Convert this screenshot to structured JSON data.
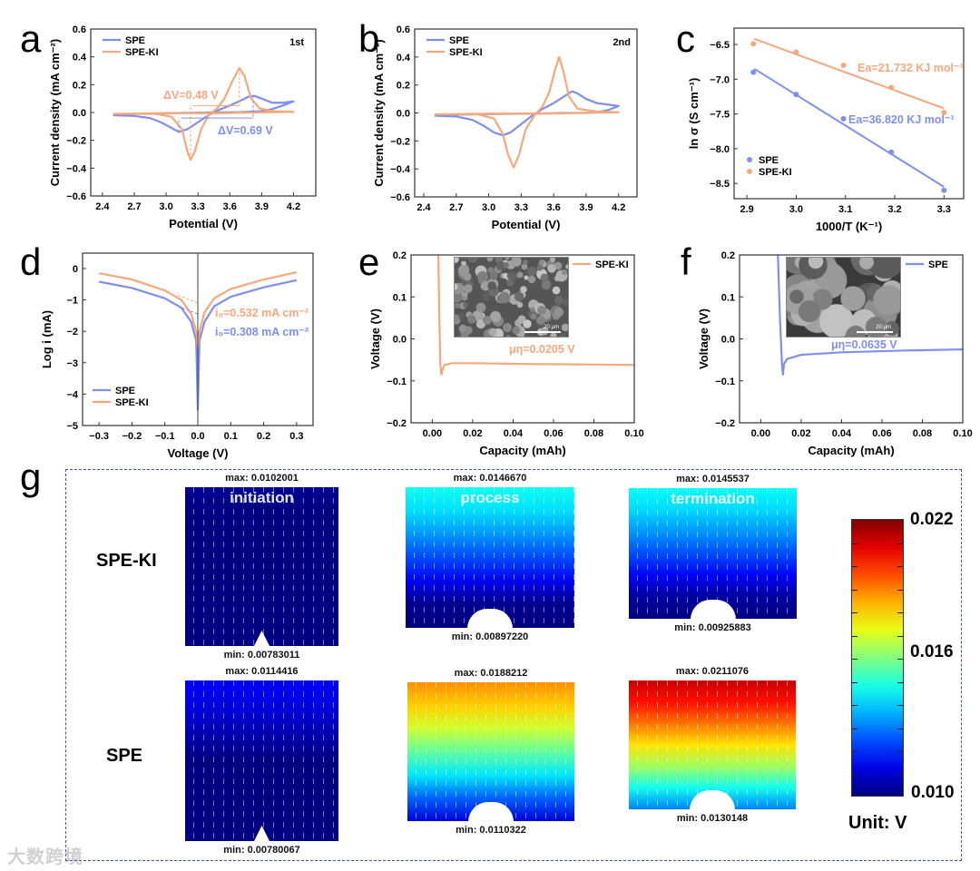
{
  "panel_letters": [
    "a",
    "b",
    "c",
    "d",
    "e",
    "f",
    "g"
  ],
  "colors": {
    "SPE": "#7f8ff0",
    "SPE-KI": "#f5a87c"
  },
  "chart_data": [
    {
      "id": "a",
      "type": "line",
      "xlabel": "Potential (V)",
      "ylabel": "Current density (mA cm⁻²)",
      "xlim": [
        2.29,
        4.41
      ],
      "ylim": [
        -0.6,
        0.6
      ],
      "x_ticks": {
        "values": [
          2.4,
          2.7,
          3.0,
          3.3,
          3.6,
          3.9,
          4.2
        ],
        "labels": [
          "2.4",
          "2.7",
          "3.0",
          "3.3",
          "3.6",
          "3.9",
          "4.2"
        ]
      },
      "y_ticks": {
        "values": [
          0.6,
          0.4,
          0.2,
          0.0,
          -0.2,
          -0.4,
          -0.6
        ],
        "labels": [
          "0.6",
          "0.4",
          "0.2",
          "0.0",
          "−0.2",
          "−0.4",
          "−0.6"
        ]
      },
      "legend": [
        "SPE",
        "SPE-KI"
      ],
      "corner_label": "1st",
      "series": [
        {
          "name": "SPE",
          "x": [
            2.5,
            2.7,
            2.85,
            2.95,
            3.05,
            3.12,
            3.2,
            3.3,
            3.4,
            3.5,
            3.6,
            3.7,
            3.78,
            3.83,
            3.9,
            4.0,
            4.1,
            4.2,
            4.1,
            4.0,
            3.9,
            3.7,
            3.4,
            3.0,
            2.7,
            2.5
          ],
          "y": [
            -0.02,
            -0.025,
            -0.04,
            -0.07,
            -0.11,
            -0.14,
            -0.12,
            -0.07,
            -0.02,
            0.02,
            0.05,
            0.085,
            0.115,
            0.12,
            0.1,
            0.07,
            0.07,
            0.08,
            0.05,
            0.025,
            0.01,
            0.003,
            0.0,
            -0.005,
            -0.01,
            -0.02
          ]
        },
        {
          "name": "SPE-KI",
          "x": [
            2.5,
            2.9,
            3.05,
            3.15,
            3.2,
            3.23,
            3.27,
            3.33,
            3.4,
            3.48,
            3.55,
            3.62,
            3.69,
            3.74,
            3.8,
            3.88,
            4.0,
            4.2,
            3.8,
            3.5,
            3.0,
            2.5
          ],
          "y": [
            -0.01,
            -0.01,
            -0.03,
            -0.12,
            -0.28,
            -0.34,
            -0.28,
            -0.12,
            -0.02,
            0.03,
            0.1,
            0.22,
            0.32,
            0.26,
            0.1,
            0.03,
            0.01,
            0.005,
            0.0,
            -0.005,
            -0.005,
            -0.01
          ]
        }
      ],
      "annotations": [
        {
          "text": "ΔV=0.48 V",
          "series": "SPE-KI"
        },
        {
          "text": "ΔV=0.69 V",
          "series": "SPE"
        }
      ]
    },
    {
      "id": "b",
      "type": "line",
      "xlabel": "Potential (V)",
      "ylabel": "Current density (mA cm⁻²)",
      "xlim": [
        2.316,
        4.37
      ],
      "ylim": [
        -0.6,
        0.6
      ],
      "x_ticks": {
        "values": [
          2.4,
          2.7,
          3.0,
          3.3,
          3.6,
          3.9,
          4.2
        ],
        "labels": [
          "2.4",
          "2.7",
          "3.0",
          "3.3",
          "3.6",
          "3.9",
          "4.2"
        ]
      },
      "y_ticks": {
        "values": [
          0.6,
          0.4,
          0.2,
          0.0,
          -0.2,
          -0.4,
          -0.6
        ],
        "labels": [
          "0.6",
          "0.4",
          "0.2",
          "0.0",
          "−0.2",
          "−0.4",
          "−0.6"
        ]
      },
      "legend": [
        "SPE",
        "SPE-KI"
      ],
      "corner_label": "2nd",
      "series": [
        {
          "name": "SPE",
          "x": [
            2.5,
            2.7,
            2.85,
            2.95,
            3.05,
            3.13,
            3.2,
            3.3,
            3.4,
            3.5,
            3.6,
            3.7,
            3.77,
            3.82,
            3.9,
            4.0,
            4.1,
            4.2,
            4.1,
            4.0,
            3.9,
            3.7,
            3.4,
            3.0,
            2.7,
            2.5
          ],
          "y": [
            -0.02,
            -0.025,
            -0.05,
            -0.09,
            -0.14,
            -0.16,
            -0.14,
            -0.08,
            -0.02,
            0.03,
            0.07,
            0.12,
            0.155,
            0.14,
            0.1,
            0.07,
            0.06,
            0.05,
            0.02,
            0.005,
            0.0,
            0.0,
            -0.005,
            -0.008,
            -0.012,
            -0.02
          ]
        },
        {
          "name": "SPE-KI",
          "x": [
            2.5,
            2.9,
            3.05,
            3.13,
            3.18,
            3.23,
            3.28,
            3.34,
            3.42,
            3.5,
            3.56,
            3.61,
            3.65,
            3.69,
            3.74,
            3.82,
            4.0,
            4.2,
            3.8,
            3.5,
            3.0,
            2.5
          ],
          "y": [
            -0.01,
            -0.01,
            -0.04,
            -0.15,
            -0.3,
            -0.39,
            -0.3,
            -0.12,
            -0.02,
            0.05,
            0.15,
            0.3,
            0.4,
            0.3,
            0.12,
            0.03,
            0.01,
            0.005,
            0.0,
            -0.005,
            -0.005,
            -0.01
          ]
        }
      ]
    },
    {
      "id": "c",
      "type": "scatter",
      "xlabel": "1000/T (K⁻¹)",
      "ylabel": "ln σ (S cm⁻¹)",
      "xlim": [
        2.874,
        3.34
      ],
      "ylim": [
        -8.72,
        -6.265
      ],
      "x_ticks": {
        "values": [
          2.9,
          3.0,
          3.1,
          3.2,
          3.3
        ],
        "labels": [
          "2.9",
          "3.0",
          "3.1",
          "3.2",
          "3.3"
        ]
      },
      "y_ticks": {
        "values": [
          -6.5,
          -7.0,
          -7.5,
          -8.0,
          -8.5
        ],
        "labels": [
          "−6.5",
          "−7.0",
          "−7.5",
          "−8.0",
          "−8.5"
        ]
      },
      "legend": [
        "SPE",
        "SPE-KI"
      ],
      "series": [
        {
          "name": "SPE",
          "x": [
            2.913,
            3.0,
            3.096,
            3.193,
            3.3
          ],
          "y": [
            -6.9,
            -7.22,
            -7.57,
            -8.05,
            -8.6
          ],
          "fit": {
            "x": [
              2.915,
              3.3
            ],
            "y": [
              -6.85,
              -8.55
            ]
          }
        },
        {
          "name": "SPE-KI",
          "x": [
            2.913,
            3.0,
            3.096,
            3.193,
            3.3
          ],
          "y": [
            -6.49,
            -6.61,
            -6.8,
            -7.12,
            -7.48
          ],
          "fit": {
            "x": [
              2.915,
              3.3
            ],
            "y": [
              -6.42,
              -7.42
            ]
          }
        }
      ],
      "annotations": [
        {
          "text": "Ea=21.732 KJ mol⁻¹",
          "series": "SPE-KI"
        },
        {
          "text": "Ea=36.820 KJ mol⁻¹",
          "series": "SPE"
        }
      ]
    },
    {
      "id": "d",
      "type": "line",
      "xlabel": "Voltage (V)",
      "ylabel": "Log i (mA)",
      "xlim": [
        -0.35,
        0.35
      ],
      "ylim": [
        -5,
        0.49
      ],
      "x_ticks": {
        "values": [
          -0.3,
          -0.2,
          -0.1,
          0.0,
          0.1,
          0.2,
          0.3
        ],
        "labels": [
          "−0.3",
          "−0.2",
          "−0.1",
          "0.0",
          "0.1",
          "0.2",
          "0.3"
        ]
      },
      "y_ticks": {
        "values": [
          0,
          -1,
          -2,
          -3,
          -4,
          -5
        ],
        "labels": [
          "0",
          "−1",
          "−2",
          "−3",
          "−4",
          "−5"
        ]
      },
      "legend": [
        "SPE",
        "SPE-KI"
      ],
      "series": [
        {
          "name": "SPE",
          "x": [
            -0.3,
            -0.2,
            -0.1,
            -0.05,
            -0.02,
            -0.005,
            0,
            0.005,
            0.02,
            0.05,
            0.1,
            0.2,
            0.3
          ],
          "y": [
            -0.42,
            -0.62,
            -0.95,
            -1.25,
            -1.7,
            -2.3,
            -4.5,
            -2.3,
            -1.7,
            -1.2,
            -0.9,
            -0.6,
            -0.37
          ]
        },
        {
          "name": "SPE-KI",
          "x": [
            -0.3,
            -0.2,
            -0.1,
            -0.05,
            -0.02,
            -0.005,
            0,
            0.005,
            0.02,
            0.05,
            0.1,
            0.2,
            0.3
          ],
          "y": [
            -0.15,
            -0.35,
            -0.7,
            -1.0,
            -1.45,
            -2.0,
            -2.5,
            -2.0,
            -1.4,
            -0.95,
            -0.65,
            -0.35,
            -0.12
          ]
        }
      ],
      "annotations": [
        {
          "text": "i₀=0.532 mA cm⁻²",
          "series": "SPE-KI"
        },
        {
          "text": "i₀=0.308 mA cm⁻²",
          "series": "SPE"
        }
      ]
    },
    {
      "id": "e",
      "type": "line",
      "xlabel": "Capacity (mAh)",
      "ylabel": "Voltage (V)",
      "xlim": [
        -0.0105,
        0.1
      ],
      "ylim": [
        -0.2,
        0.2
      ],
      "x_ticks": {
        "values": [
          0,
          0.02,
          0.04,
          0.06,
          0.08,
          0.1
        ],
        "labels": [
          "0.00",
          "0.02",
          "0.04",
          "0.06",
          "0.08",
          "0.10"
        ]
      },
      "y_ticks": {
        "values": [
          0.2,
          0.1,
          0.0,
          -0.1,
          -0.2
        ],
        "labels": [
          "0.2",
          "0.1",
          "0.0",
          "−0.1",
          "−0.2"
        ]
      },
      "legend": [
        "SPE-KI"
      ],
      "series": [
        {
          "name": "SPE-KI",
          "x": [
            0.003,
            0.0035,
            0.004,
            0.0045,
            0.005,
            0.006,
            0.01,
            0.02,
            0.05,
            0.1
          ],
          "y": [
            0.2,
            0.05,
            -0.06,
            -0.085,
            -0.075,
            -0.062,
            -0.058,
            -0.058,
            -0.06,
            -0.062
          ]
        }
      ],
      "annotations": [
        {
          "text": "μη=0.0205 V",
          "series": "SPE-KI"
        }
      ],
      "inset_scale_bar": "20 μm"
    },
    {
      "id": "f",
      "type": "line",
      "xlabel": "Capacity (mAh)",
      "ylabel": "Voltage (V)",
      "xlim": [
        -0.0105,
        0.1
      ],
      "ylim": [
        -0.2,
        0.2
      ],
      "x_ticks": {
        "values": [
          0,
          0.02,
          0.04,
          0.06,
          0.08,
          0.1
        ],
        "labels": [
          "0.00",
          "0.02",
          "0.04",
          "0.06",
          "0.08",
          "0.10"
        ]
      },
      "y_ticks": {
        "values": [
          0.2,
          0.1,
          0.0,
          -0.1,
          -0.2
        ],
        "labels": [
          "0.2",
          "0.1",
          "0.0",
          "−0.1",
          "−0.2"
        ]
      },
      "legend": [
        "SPE"
      ],
      "series": [
        {
          "name": "SPE",
          "x": [
            0.0085,
            0.0095,
            0.0105,
            0.011,
            0.0115,
            0.013,
            0.02,
            0.04,
            0.07,
            0.1
          ],
          "y": [
            0.2,
            0.05,
            -0.06,
            -0.085,
            -0.06,
            -0.048,
            -0.038,
            -0.032,
            -0.028,
            -0.025
          ]
        }
      ],
      "annotations": [
        {
          "text": "μη=0.0635 V",
          "series": "SPE"
        }
      ],
      "inset_scale_bar": "20 μm"
    },
    {
      "id": "g",
      "type": "heatmap",
      "colorbar": {
        "min": 0.01,
        "max": 0.022,
        "labels": [
          "0.022",
          "0.016",
          "0.010"
        ],
        "unit": "Unit: V"
      },
      "rows": [
        {
          "label": "SPE-KI",
          "maps": [
            {
              "title": "initiation",
              "max": "max: 0.0102001",
              "min": "min: 0.00783011",
              "vmax": 0.0102001,
              "vmin": 0.00783011
            },
            {
              "title": "process",
              "max": "max: 0.0146670",
              "min": "min: 0.00897220",
              "vmax": 0.014667,
              "vmin": 0.0089722
            },
            {
              "title": "termination",
              "max": "max: 0.0145537",
              "min": "min: 0.00925883",
              "vmax": 0.0145537,
              "vmin": 0.00925883
            }
          ]
        },
        {
          "label": "SPE",
          "maps": [
            {
              "title": "",
              "max": "max: 0.0114416",
              "min": "min: 0.00780067",
              "vmax": 0.0114416,
              "vmin": 0.00780067
            },
            {
              "title": "",
              "max": "max: 0.0188212",
              "min": "min: 0.0110322",
              "vmax": 0.0188212,
              "vmin": 0.0110322
            },
            {
              "title": "",
              "max": "max: 0.0211076",
              "min": "min: 0.0130148",
              "vmax": 0.0211076,
              "vmin": 0.0130148
            }
          ]
        }
      ]
    }
  ],
  "watermark": "大数跨境"
}
